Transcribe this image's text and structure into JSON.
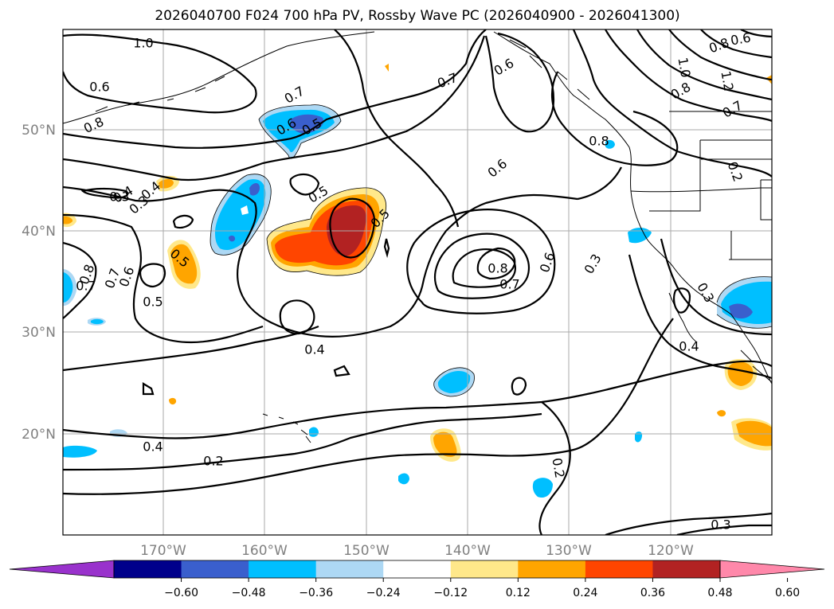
{
  "title": "2026040700 F024 700 hPa PV, Rossby Wave PC (2026040900 - 2026041300)",
  "map": {
    "lat_labels": [
      "50°N",
      "40°N",
      "30°N",
      "20°N"
    ],
    "lon_labels": [
      "170°W",
      "160°W",
      "150°W",
      "140°W",
      "130°W",
      "120°W"
    ],
    "contour_labels": [
      "1.0",
      "0.8",
      "0.7",
      "0.6",
      "0.5",
      "0.5",
      "0.4",
      "0.3",
      "0.4",
      "0.5",
      "0.8",
      "0.7",
      "0.6",
      "0.5",
      "0.4",
      "0.6",
      "0.8",
      "0.7",
      "0.6",
      "0.3",
      "0.3",
      "0.4",
      "0.8",
      "1.0",
      "0.8",
      "0.7",
      "1.2",
      "0.6",
      "0.8",
      "0.2",
      "0.6",
      "0.7",
      "0.6",
      "0.5",
      "0.3",
      "0.4",
      "0.2",
      "0.2",
      "0.3",
      "0.7"
    ]
  },
  "colorbar": {
    "ticks": [
      "−0.60",
      "−0.48",
      "−0.36",
      "−0.24",
      "−0.12",
      "0.12",
      "0.24",
      "0.36",
      "0.48",
      "0.60"
    ],
    "colors": [
      "#9932cc",
      "#00008b",
      "#3a5fcd",
      "#00bfff",
      "#add8f4",
      "#ffffff",
      "#ffe88a",
      "#ffa500",
      "#ff4500",
      "#b22222",
      "#ff88aa"
    ]
  },
  "anomaly_colors": {
    "neg_outer": "#add8f4",
    "neg_mid": "#00bfff",
    "neg_inner": "#3a5fcd",
    "neg_core": "#00008b",
    "pos_outer": "#ffe88a",
    "pos_mid": "#ffa500",
    "pos_inner": "#ff4500",
    "pos_core": "#b22222"
  }
}
